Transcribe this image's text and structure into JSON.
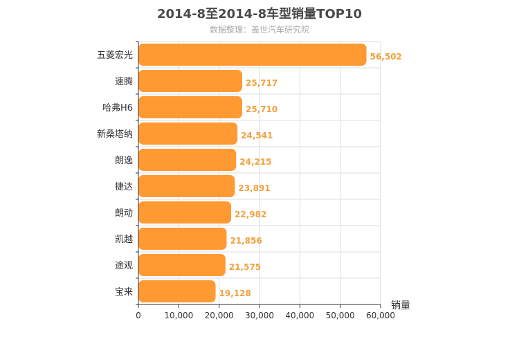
{
  "chart_data": {
    "type": "bar",
    "orientation": "horizontal",
    "title": "2014-8至2014-8车型销量TOP10",
    "subtitle": "数据整理：盖世汽车研究院",
    "xlabel": "销量",
    "ylabel": "",
    "categories": [
      "五菱宏光",
      "速腾",
      "哈弗H6",
      "新桑塔纳",
      "朗逸",
      "捷达",
      "朗动",
      "凯越",
      "途观",
      "宝来"
    ],
    "values": [
      56502,
      25717,
      25710,
      24541,
      24215,
      23891,
      22982,
      21856,
      21575,
      19128
    ],
    "value_labels": [
      "56,502",
      "25,717",
      "25,710",
      "24,541",
      "24,215",
      "23,891",
      "22,982",
      "21,856",
      "21,575",
      "19,128"
    ],
    "xlim": [
      0,
      60000
    ],
    "xticks": [
      0,
      10000,
      20000,
      30000,
      40000,
      50000,
      60000
    ],
    "xtick_labels": [
      "0",
      "10,000",
      "20,000",
      "30,000",
      "40,000",
      "50,000",
      "60,000"
    ],
    "grid": true,
    "bar_color": "#ff9a33",
    "value_label_color": "#f2a03b"
  }
}
